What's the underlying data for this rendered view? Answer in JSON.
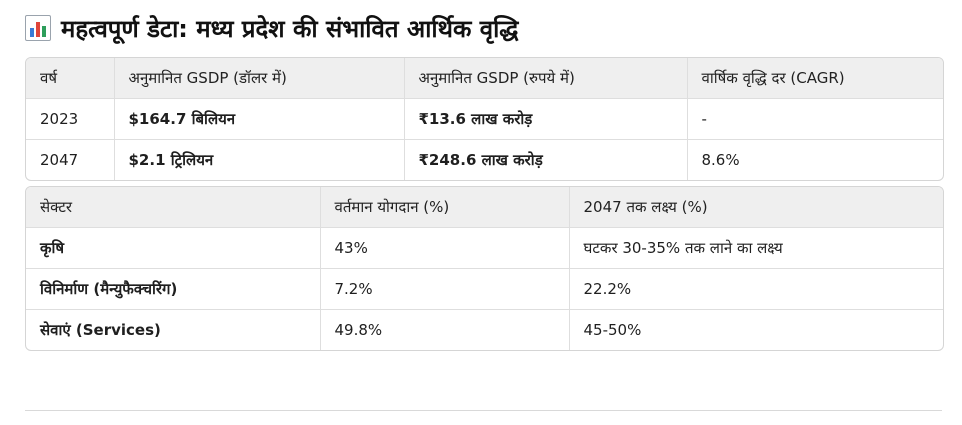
{
  "page": {
    "title": "महत्वपूर्ण डेटा: मध्य प्रदेश की संभावित आर्थिक वृद्धि",
    "title_icon": "bar-chart-icon",
    "colors": {
      "header_bg": "#efefef",
      "border": "#d5d5d5",
      "icon_blue": "#3a7bd5",
      "icon_red": "#e0453a",
      "icon_green": "#2e9e5b"
    }
  },
  "growth_table": {
    "headers": [
      "वर्ष",
      "अनुमानित GSDP (डॉलर में)",
      "अनुमानित GSDP (रुपये में)",
      "वार्षिक वृद्धि दर (CAGR)"
    ],
    "rows": [
      [
        "2023",
        "$164.7 बिलियन",
        "₹13.6 लाख करोड़",
        "-"
      ],
      [
        "2047",
        "$2.1 ट्रिलियन",
        "₹248.6 लाख करोड़",
        "8.6%"
      ]
    ]
  },
  "sector_table": {
    "headers": [
      "सेक्टर",
      "वर्तमान योगदान (%)",
      "2047 तक लक्ष्य (%)"
    ],
    "rows": [
      [
        "कृषि",
        "43%",
        "घटकर 30-35% तक लाने का लक्ष्य"
      ],
      [
        "विनिर्माण (मैन्युफैक्चरिंग)",
        "7.2%",
        "22.2%"
      ],
      [
        "सेवाएं (Services)",
        "49.8%",
        "45-50%"
      ]
    ]
  }
}
